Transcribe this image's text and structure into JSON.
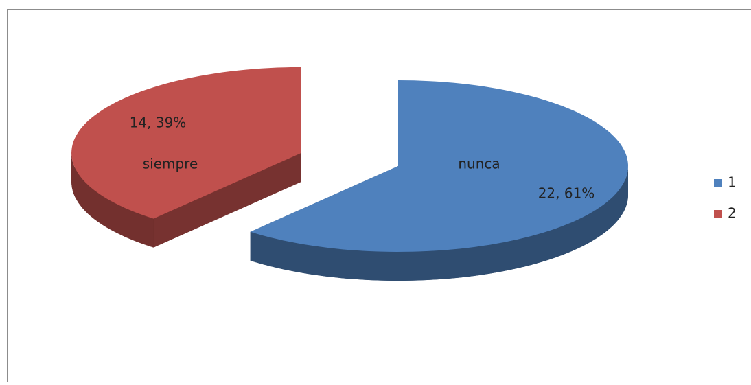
{
  "chart_data": {
    "type": "pie3d",
    "categories": [
      "1",
      "2"
    ],
    "slice_labels": [
      "nunca",
      "siempre"
    ],
    "values": [
      22,
      14
    ],
    "value_labels": [
      "22, 61%",
      "14, 39%"
    ],
    "colors": [
      "#4f81bd",
      "#c0504d"
    ],
    "legend": "right"
  }
}
